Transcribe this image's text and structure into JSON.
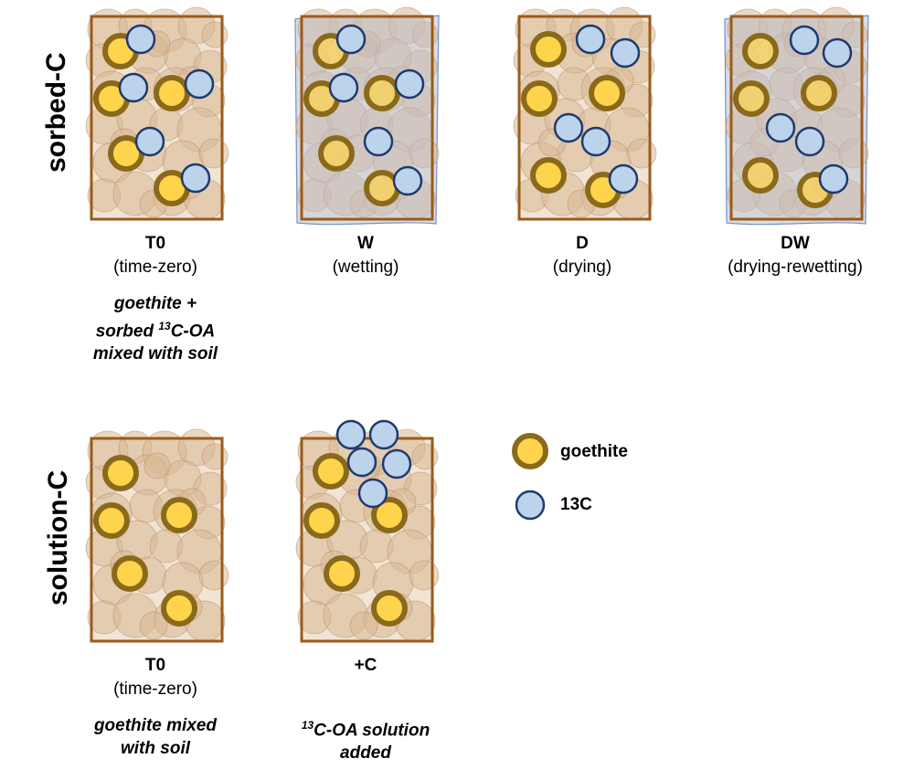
{
  "rows": {
    "sorbed": {
      "label": "sorbed-C"
    },
    "solution": {
      "label": "solution-C"
    }
  },
  "panels": {
    "s_t0": {
      "code": "T0",
      "desc": "(time-zero)",
      "note_pre": "goethite +",
      "note_line2_sup": "13",
      "note_line2_rest": "C-OA",
      "note_line2_pre": "sorbed ",
      "note_line3": "mixed with soil"
    },
    "s_w": {
      "code": "W",
      "desc": "(wetting)"
    },
    "s_d": {
      "code": "D",
      "desc": "(drying)"
    },
    "s_dw": {
      "code": "DW",
      "desc": "(drying-rewetting)"
    },
    "l_t0": {
      "code": "T0",
      "desc": "(time-zero)",
      "note_line1": "goethite mixed",
      "note_line2": "with soil"
    },
    "l_c": {
      "code": "+C",
      "note_sup": "13",
      "note_line1_rest": "C-OA solution",
      "note_line2": "added"
    }
  },
  "legend": {
    "goethite": "goethite",
    "c13": "13C"
  },
  "colors": {
    "frame": "#9a5b1c",
    "soil_fill": "#f1e4d4",
    "soil_particle": "#d9b894",
    "goethite_core": "#ffd44d",
    "goethite_ring": "#8a6a1a",
    "c13_fill": "#bcd3ec",
    "c13_stroke": "#1f3a6e",
    "water": "#b7c2d6"
  }
}
